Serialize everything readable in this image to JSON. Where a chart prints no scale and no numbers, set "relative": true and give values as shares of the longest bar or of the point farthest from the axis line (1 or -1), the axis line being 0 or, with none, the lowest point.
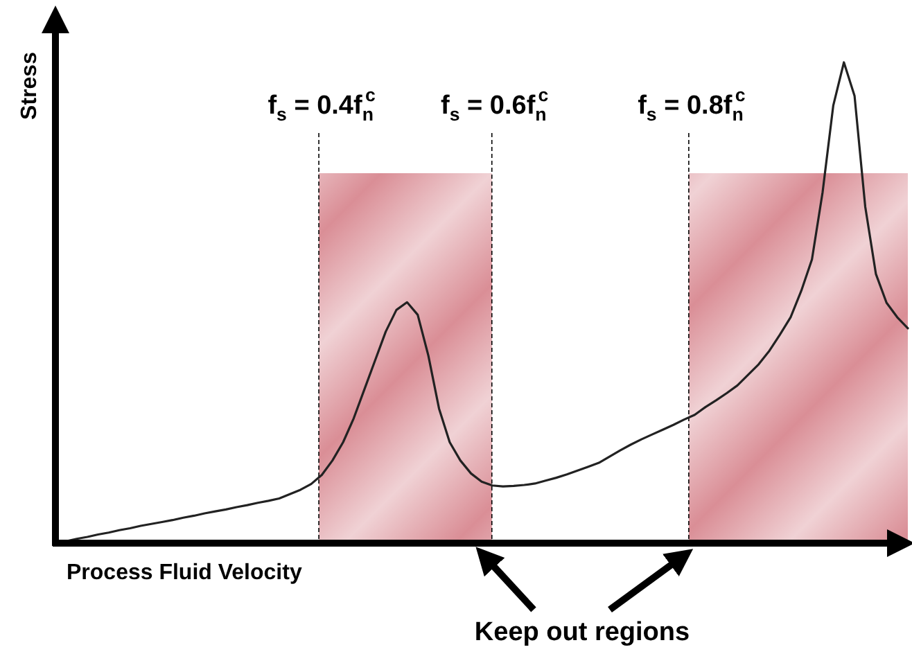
{
  "chart_data": {
    "type": "line",
    "relative": true,
    "xlabel": "Process Fluid Velocity",
    "ylabel": "Stress",
    "tick_labels": false,
    "marker": "none",
    "line_style": "solid",
    "categories": [
      null,
      null,
      null,
      null,
      null,
      null,
      null,
      null,
      null,
      null,
      null,
      null,
      null,
      null,
      null,
      null,
      null,
      null,
      null,
      null,
      null,
      null,
      null,
      null,
      null,
      null,
      null,
      null,
      null,
      null,
      null,
      null,
      null,
      null,
      null,
      null,
      null,
      null,
      null,
      null,
      null,
      null,
      null,
      null,
      null,
      null,
      null,
      null,
      null,
      null,
      null,
      null,
      null,
      null,
      null,
      null,
      null,
      null,
      null,
      null,
      null,
      null,
      null,
      null,
      null,
      null,
      null,
      null,
      null,
      null,
      null,
      null,
      null,
      null,
      null,
      null,
      null,
      null,
      null,
      null,
      null
    ],
    "series": [
      {
        "color": "#222222",
        "values": [
          0,
          0.004,
          0.009,
          0.013,
          0.018,
          0.022,
          0.027,
          0.031,
          0.036,
          0.04,
          0.044,
          0.048,
          0.053,
          0.057,
          0.062,
          0.066,
          0.07,
          0.075,
          0.079,
          0.084,
          0.088,
          0.093,
          0.102,
          0.111,
          0.123,
          0.142,
          0.172,
          0.21,
          0.26,
          0.32,
          0.38,
          0.44,
          0.485,
          0.501,
          0.475,
          0.39,
          0.28,
          0.21,
          0.172,
          0.145,
          0.128,
          0.12,
          0.118,
          0.119,
          0.121,
          0.124,
          0.13,
          0.136,
          0.143,
          0.151,
          0.159,
          0.167,
          0.18,
          0.193,
          0.205,
          0.216,
          0.226,
          0.236,
          0.246,
          0.257,
          0.267,
          0.283,
          0.297,
          0.312,
          0.328,
          0.35,
          0.372,
          0.4,
          0.434,
          0.47,
          0.525,
          0.59,
          0.73,
          0.91,
          1.0,
          0.93,
          0.7,
          0.56,
          0.5,
          0.47,
          0.447
        ]
      }
    ],
    "annotations": [
      "f$_{s}$ = 0.4f$_{n}$$^{c}$",
      "f$_{s}$ = 0.6f$_{n}$$^{c}$",
      "f$_{s}$ = 0.8f$_{n}$$^{c}$",
      "Keep out regions"
    ]
  }
}
